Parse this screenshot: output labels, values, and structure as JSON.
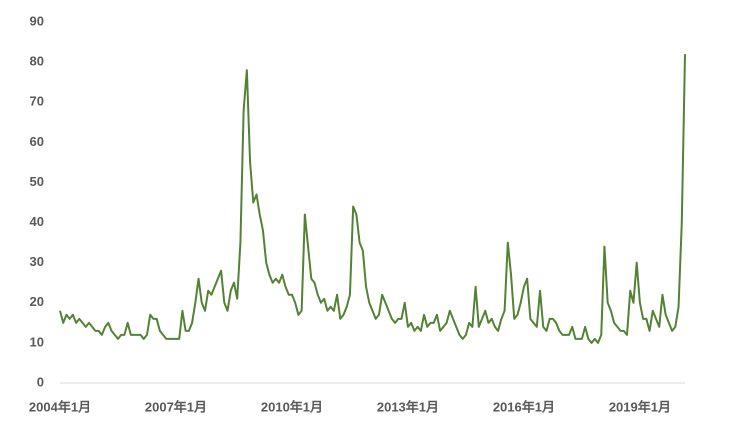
{
  "chart_data": {
    "type": "line",
    "categories": [
      "2004年1月",
      null,
      null,
      null,
      null,
      null,
      null,
      null,
      null,
      null,
      null,
      null,
      null,
      null,
      null,
      null,
      null,
      null,
      null,
      null,
      null,
      null,
      null,
      null,
      null,
      null,
      null,
      null,
      null,
      null,
      null,
      null,
      null,
      null,
      null,
      null,
      "2007年1月",
      null,
      null,
      null,
      null,
      null,
      null,
      null,
      null,
      null,
      null,
      null,
      null,
      null,
      null,
      null,
      null,
      null,
      null,
      null,
      null,
      null,
      null,
      null,
      null,
      null,
      null,
      null,
      null,
      null,
      null,
      null,
      null,
      null,
      null,
      null,
      "2010年1月",
      null,
      null,
      null,
      null,
      null,
      null,
      null,
      null,
      null,
      null,
      null,
      null,
      null,
      null,
      null,
      null,
      null,
      null,
      null,
      null,
      null,
      null,
      null,
      null,
      null,
      null,
      null,
      null,
      null,
      null,
      null,
      null,
      null,
      null,
      null,
      "2013年1月",
      null,
      null,
      null,
      null,
      null,
      null,
      null,
      null,
      null,
      null,
      null,
      null,
      null,
      null,
      null,
      null,
      null,
      null,
      null,
      null,
      null,
      null,
      null,
      null,
      null,
      null,
      null,
      null,
      null,
      null,
      null,
      null,
      null,
      null,
      null,
      "2016年1月",
      null,
      null,
      null,
      null,
      null,
      null,
      null,
      null,
      null,
      null,
      null,
      null,
      null,
      null,
      null,
      null,
      null,
      null,
      null,
      null,
      null,
      null,
      null,
      null,
      null,
      null,
      null,
      null,
      null,
      null,
      null,
      null,
      null,
      null,
      null,
      "2019年1月",
      null,
      null,
      null,
      null,
      null,
      null,
      null,
      null,
      null,
      null,
      null,
      null,
      null,
      null
    ],
    "values": [
      18,
      15,
      17,
      16,
      17,
      15,
      16,
      15,
      14,
      15,
      14,
      13,
      13,
      12,
      14,
      15,
      13,
      12,
      11,
      12,
      12,
      15,
      12,
      12,
      12,
      12,
      11,
      12,
      17,
      16,
      16,
      13,
      12,
      11,
      11,
      11,
      11,
      11,
      18,
      13,
      13,
      15,
      20,
      26,
      20,
      18,
      23,
      22,
      24,
      26,
      28,
      20,
      18,
      23,
      25,
      21,
      35,
      68,
      78,
      55,
      45,
      47,
      42,
      38,
      30,
      27,
      25,
      26,
      25,
      27,
      24,
      22,
      22,
      20,
      17,
      18,
      42,
      34,
      26,
      25,
      22,
      20,
      21,
      18,
      19,
      18,
      22,
      16,
      17,
      19,
      22,
      44,
      42,
      35,
      33,
      24,
      20,
      18,
      16,
      17,
      22,
      20,
      18,
      16,
      15,
      16,
      16,
      20,
      14,
      15,
      13,
      14,
      13,
      17,
      14,
      15,
      15,
      17,
      13,
      14,
      15,
      18,
      16,
      14,
      12,
      11,
      12,
      15,
      14,
      24,
      14,
      16,
      18,
      15,
      16,
      14,
      13,
      16,
      18,
      35,
      27,
      16,
      17,
      20,
      24,
      26,
      16,
      15,
      14,
      23,
      14,
      13,
      16,
      16,
      15,
      13,
      12,
      12,
      12,
      14,
      11,
      11,
      11,
      14,
      11,
      10,
      11,
      10,
      12,
      34,
      20,
      18,
      15,
      14,
      13,
      13,
      12,
      23,
      20,
      30,
      20,
      16,
      16,
      13,
      18,
      16,
      14,
      22,
      17,
      15,
      13,
      14,
      19,
      40,
      82
    ],
    "color": "#548235",
    "ylim": [
      0,
      90
    ],
    "yticks": [
      0,
      10,
      20,
      30,
      40,
      50,
      60,
      70,
      80,
      90
    ]
  }
}
